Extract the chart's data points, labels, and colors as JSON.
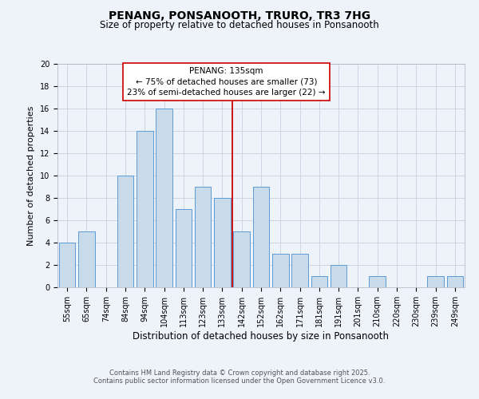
{
  "title": "PENANG, PONSANOOTH, TRURO, TR3 7HG",
  "subtitle": "Size of property relative to detached houses in Ponsanooth",
  "xlabel": "Distribution of detached houses by size in Ponsanooth",
  "ylabel": "Number of detached properties",
  "bar_labels": [
    "55sqm",
    "65sqm",
    "74sqm",
    "84sqm",
    "94sqm",
    "104sqm",
    "113sqm",
    "123sqm",
    "133sqm",
    "142sqm",
    "152sqm",
    "162sqm",
    "171sqm",
    "181sqm",
    "191sqm",
    "201sqm",
    "210sqm",
    "220sqm",
    "230sqm",
    "239sqm",
    "249sqm"
  ],
  "bar_values": [
    4,
    5,
    0,
    10,
    14,
    16,
    7,
    9,
    8,
    5,
    9,
    3,
    3,
    1,
    2,
    0,
    1,
    0,
    0,
    1,
    1
  ],
  "bar_color": "#c9daea",
  "bar_edge_color": "#5b9bd5",
  "ylim": [
    0,
    20
  ],
  "yticks": [
    0,
    2,
    4,
    6,
    8,
    10,
    12,
    14,
    16,
    18,
    20
  ],
  "vline_idx": 8,
  "vline_color": "#cc0000",
  "annotation_title": "PENANG: 135sqm",
  "annotation_line1": "← 75% of detached houses are smaller (73)",
  "annotation_line2": "23% of semi-detached houses are larger (22) →",
  "background_color": "#eef2f9",
  "plot_bg_color": "#eef2f9",
  "grid_color": "#c8d0e0",
  "footer_line1": "Contains HM Land Registry data © Crown copyright and database right 2025.",
  "footer_line2": "Contains public sector information licensed under the Open Government Licence v3.0.",
  "title_fontsize": 10,
  "subtitle_fontsize": 8.5,
  "xlabel_fontsize": 8.5,
  "ylabel_fontsize": 8,
  "tick_fontsize": 7,
  "annotation_fontsize": 7.5,
  "footer_fontsize": 6
}
